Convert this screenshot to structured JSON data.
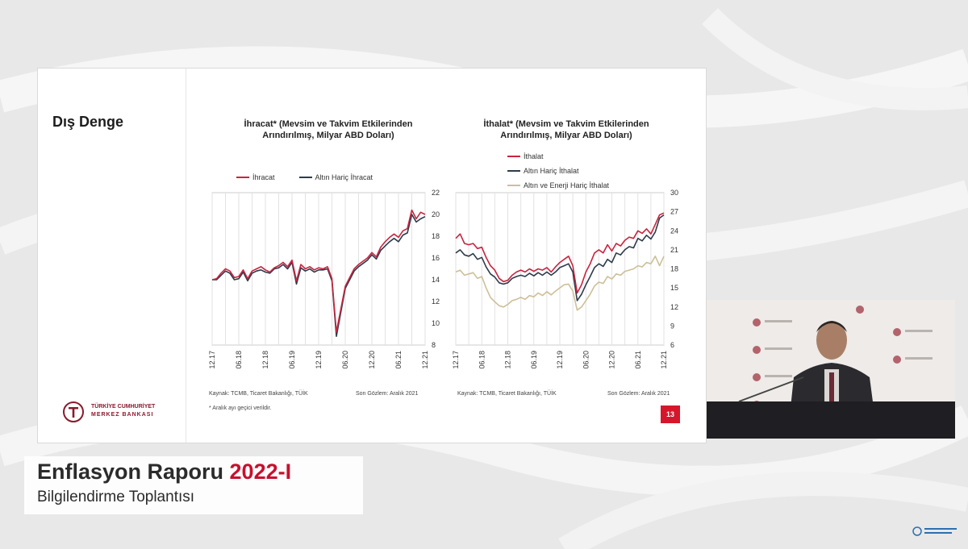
{
  "slide": {
    "title": "Dış Denge",
    "page_number": "13",
    "footnote": "* Aralık ayı geçici verildir.",
    "logo_line1": "TÜRKİYE CUMHURİYET",
    "logo_line2": "MERKEZ BANKASI",
    "logo_mark": "TCMB"
  },
  "charts": {
    "left": {
      "title_line1": "İhracat* (Mevsim ve Takvim Etkilerinden",
      "title_line2": "Arındırılmış, Milyar ABD Doları)",
      "legend": [
        "İhracat",
        "Altın Hariç İhracat"
      ],
      "source": "Kaynak: TCMB, Ticaret Bakanlığı, TÜİK",
      "last_obs": "Son Gözlem: Aralık 2021"
    },
    "right": {
      "title_line1": "İthalat* (Mevsim ve Takvim Etkilerinden",
      "title_line2": "Arındırılmış, Milyar ABD Doları)",
      "legend": [
        "İthalat",
        "Altın Hariç İthalat",
        "Altın ve Enerji Hariç İthalat"
      ],
      "source": "Kaynak: TCMB, Ticaret Bakanlığı, TÜİK",
      "last_obs": "Son Gözlem: Aralık 2021"
    }
  },
  "banner": {
    "title_main": "Enflasyon Raporu ",
    "title_accent": "2022-I",
    "subtitle": "Bilgilendirme Toplantısı"
  },
  "colors": {
    "series_red": "#c8243f",
    "series_dark": "#2e3b4a",
    "series_beige": "#cdbf97",
    "accent": "#c8102e"
  },
  "chart_data": [
    {
      "type": "line",
      "x": [
        "12.17",
        "01.18",
        "02.18",
        "03.18",
        "04.18",
        "05.18",
        "06.18",
        "07.18",
        "08.18",
        "09.18",
        "10.18",
        "11.18",
        "12.18",
        "01.19",
        "02.19",
        "03.19",
        "04.19",
        "05.19",
        "06.19",
        "07.19",
        "08.19",
        "09.19",
        "10.19",
        "11.19",
        "12.19",
        "01.20",
        "02.20",
        "03.20",
        "04.20",
        "05.20",
        "06.20",
        "07.20",
        "08.20",
        "09.20",
        "10.20",
        "11.20",
        "12.20",
        "01.21",
        "02.21",
        "03.21",
        "04.21",
        "05.21",
        "06.21",
        "07.21",
        "08.21",
        "09.21",
        "10.21",
        "11.21",
        "12.21"
      ],
      "x_ticks": [
        "12.17",
        "06.18",
        "12.18",
        "06.19",
        "12.19",
        "06.20",
        "12.20",
        "06.21",
        "12.21"
      ],
      "series": [
        {
          "name": "İhracat",
          "values": [
            14.0,
            14.1,
            14.6,
            15.0,
            14.8,
            14.2,
            14.3,
            14.9,
            14.1,
            14.8,
            15.0,
            15.2,
            14.9,
            14.7,
            15.1,
            15.3,
            15.6,
            15.2,
            15.8,
            13.9,
            15.4,
            15.0,
            15.2,
            14.9,
            15.1,
            15.0,
            15.2,
            14.1,
            9.2,
            11.3,
            13.4,
            14.2,
            15.0,
            15.4,
            15.7,
            16.0,
            16.5,
            16.1,
            17.0,
            17.5,
            17.9,
            18.2,
            17.9,
            18.5,
            18.7,
            20.4,
            19.6,
            20.2,
            20.0
          ]
        },
        {
          "name": "Altın Hariç İhracat",
          "values": [
            14.0,
            14.0,
            14.4,
            14.8,
            14.6,
            14.0,
            14.1,
            14.7,
            13.9,
            14.6,
            14.8,
            14.9,
            14.7,
            14.6,
            15.0,
            15.1,
            15.4,
            15.0,
            15.6,
            13.6,
            15.1,
            14.8,
            15.0,
            14.7,
            14.9,
            14.9,
            15.0,
            13.9,
            8.8,
            11.0,
            13.2,
            14.0,
            14.8,
            15.2,
            15.5,
            15.8,
            16.3,
            15.9,
            16.7,
            17.1,
            17.5,
            17.8,
            17.5,
            18.1,
            18.3,
            20.0,
            19.3,
            19.6,
            19.8
          ]
        }
      ],
      "ylim": [
        8,
        22
      ],
      "yticks": [
        8,
        10,
        12,
        14,
        16,
        18,
        20,
        22
      ]
    },
    {
      "type": "line",
      "x": [
        "12.17",
        "01.18",
        "02.18",
        "03.18",
        "04.18",
        "05.18",
        "06.18",
        "07.18",
        "08.18",
        "09.18",
        "10.18",
        "11.18",
        "12.18",
        "01.19",
        "02.19",
        "03.19",
        "04.19",
        "05.19",
        "06.19",
        "07.19",
        "08.19",
        "09.19",
        "10.19",
        "11.19",
        "12.19",
        "01.20",
        "02.20",
        "03.20",
        "04.20",
        "05.20",
        "06.20",
        "07.20",
        "08.20",
        "09.20",
        "10.20",
        "11.20",
        "12.20",
        "01.21",
        "02.21",
        "03.21",
        "04.21",
        "05.21",
        "06.21",
        "07.21",
        "08.21",
        "09.21",
        "10.21",
        "11.21",
        "12.21"
      ],
      "x_ticks": [
        "12.17",
        "06.18",
        "12.18",
        "06.19",
        "12.19",
        "06.20",
        "12.20",
        "06.21",
        "12.21"
      ],
      "series": [
        {
          "name": "İthalat",
          "values": [
            22.8,
            23.5,
            22.0,
            21.8,
            22.0,
            21.2,
            21.4,
            19.8,
            18.5,
            17.8,
            16.5,
            16.0,
            16.2,
            17.0,
            17.5,
            17.8,
            17.5,
            18.0,
            17.6,
            18.0,
            17.8,
            18.2,
            17.5,
            18.3,
            19.0,
            19.5,
            20.0,
            18.5,
            14.2,
            15.5,
            17.5,
            18.8,
            20.5,
            21.0,
            20.5,
            21.8,
            20.8,
            22.0,
            21.6,
            22.5,
            23.0,
            22.8,
            24.0,
            23.6,
            24.3,
            23.5,
            25.0,
            26.5,
            26.8
          ]
        },
        {
          "name": "Altın Hariç İthalat",
          "values": [
            20.5,
            21.0,
            20.2,
            20.0,
            20.4,
            19.5,
            19.8,
            18.3,
            17.2,
            16.7,
            15.8,
            15.6,
            15.8,
            16.5,
            16.8,
            17.0,
            16.8,
            17.3,
            16.9,
            17.4,
            17.0,
            17.5,
            17.0,
            17.5,
            18.2,
            18.5,
            18.8,
            17.5,
            13.0,
            14.0,
            15.5,
            16.8,
            18.2,
            18.8,
            18.4,
            19.5,
            19.0,
            20.5,
            20.2,
            21.0,
            21.5,
            21.3,
            22.8,
            22.4,
            23.3,
            22.7,
            23.8,
            26.0,
            26.5
          ]
        },
        {
          "name": "Altın ve Enerji Hariç İthalat",
          "values": [
            17.5,
            17.8,
            17.0,
            17.2,
            17.4,
            16.5,
            16.8,
            15.0,
            13.5,
            12.8,
            12.2,
            12.0,
            12.4,
            13.0,
            13.2,
            13.5,
            13.2,
            13.8,
            13.6,
            14.2,
            13.8,
            14.4,
            13.9,
            14.5,
            15.0,
            15.5,
            15.6,
            14.5,
            11.5,
            12.0,
            13.0,
            14.0,
            15.3,
            15.9,
            15.7,
            16.8,
            16.4,
            17.2,
            17.0,
            17.6,
            17.8,
            18.0,
            18.5,
            18.3,
            19.0,
            18.8,
            20.0,
            18.5,
            20.0
          ]
        }
      ],
      "ylim": [
        6,
        30
      ],
      "yticks": [
        6,
        9,
        12,
        15,
        18,
        21,
        24,
        27,
        30
      ]
    }
  ]
}
